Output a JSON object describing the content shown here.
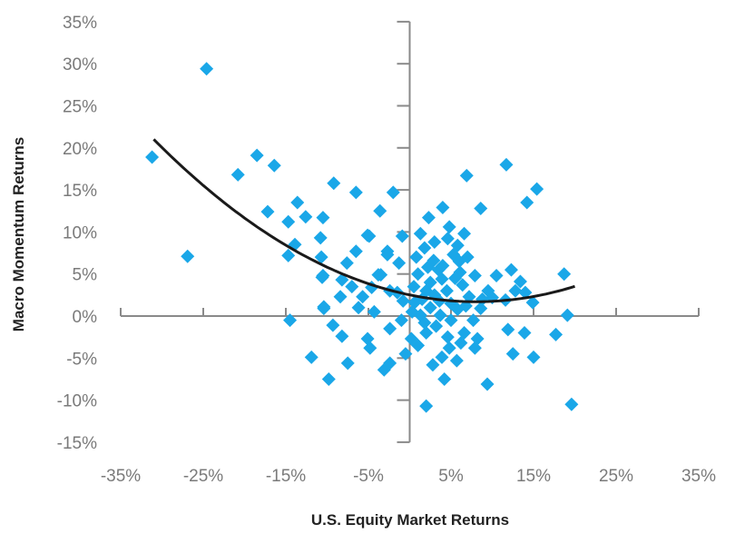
{
  "chart_data": {
    "type": "scatter",
    "title": "",
    "xlabel": "U.S. Equity Market Returns",
    "ylabel": "Macro Momentum Returns",
    "xlim": [
      -35,
      35
    ],
    "ylim": [
      -15,
      35
    ],
    "x_ticks": [
      -35,
      -25,
      -15,
      -5,
      5,
      15,
      25,
      35
    ],
    "x_tick_labels": [
      "-35%",
      "-25%",
      "-15%",
      "-5%",
      "5%",
      "15%",
      "25%",
      "35%"
    ],
    "y_ticks": [
      35,
      30,
      25,
      20,
      15,
      10,
      5,
      0,
      -5,
      -10,
      -15
    ],
    "y_tick_labels": [
      "35%",
      "30%",
      "25%",
      "20%",
      "15%",
      "10%",
      "5%",
      "0%",
      "-5%",
      "-10%",
      "-15%"
    ],
    "grid": false,
    "legend": "none",
    "marker": "diamond",
    "colors": {
      "points": "#1AA7E8",
      "fit_line": "#1a1a1a",
      "axis": "#8a8a8a"
    },
    "points": [
      [
        -24.6,
        29.4
      ],
      [
        -31.2,
        18.9
      ],
      [
        -26.9,
        7.1
      ],
      [
        -20.8,
        16.8
      ],
      [
        -18.5,
        19.1
      ],
      [
        -16.4,
        17.9
      ],
      [
        -17.2,
        12.4
      ],
      [
        -14.7,
        11.2
      ],
      [
        -13.6,
        13.5
      ],
      [
        -12.6,
        11.8
      ],
      [
        -10.5,
        11.7
      ],
      [
        -10.8,
        9.3
      ],
      [
        -13.9,
        8.5
      ],
      [
        -14.7,
        7.2
      ],
      [
        -9.2,
        15.8
      ],
      [
        -6.5,
        14.7
      ],
      [
        -2.0,
        14.7
      ],
      [
        -3.6,
        12.5
      ],
      [
        -5.1,
        9.6
      ],
      [
        -6.5,
        7.7
      ],
      [
        -10.7,
        7.0
      ],
      [
        -10.5,
        4.8
      ],
      [
        -7.6,
        6.3
      ],
      [
        -8.2,
        4.3
      ],
      [
        -10.4,
        1.1
      ],
      [
        -8.4,
        2.3
      ],
      [
        -3.8,
        4.9
      ],
      [
        -2.7,
        7.7
      ],
      [
        -14.5,
        -0.5
      ],
      [
        11.7,
        18.0
      ],
      [
        6.9,
        16.7
      ],
      [
        15.4,
        15.1
      ],
      [
        14.2,
        13.5
      ],
      [
        8.6,
        12.8
      ],
      [
        4.0,
        12.9
      ],
      [
        2.3,
        11.7
      ],
      [
        4.8,
        10.6
      ],
      [
        6.6,
        9.8
      ],
      [
        4.6,
        9.2
      ],
      [
        1.3,
        9.8
      ],
      [
        -0.9,
        9.5
      ],
      [
        -4.9,
        9.5
      ],
      [
        -2.7,
        7.3
      ],
      [
        -1.3,
        6.3
      ],
      [
        1.8,
        8.1
      ],
      [
        2.9,
        6.6
      ],
      [
        5.3,
        7.3
      ],
      [
        6.1,
        5.2
      ],
      [
        7.9,
        4.8
      ],
      [
        10.5,
        4.8
      ],
      [
        12.3,
        5.5
      ],
      [
        13.4,
        4.1
      ],
      [
        18.7,
        5.0
      ],
      [
        14.9,
        1.6
      ],
      [
        11.6,
        1.9
      ],
      [
        8.6,
        0.9
      ],
      [
        19.1,
        0.1
      ],
      [
        11.9,
        -1.6
      ],
      [
        13.9,
        -2.0
      ],
      [
        17.7,
        -2.2
      ],
      [
        12.5,
        -4.5
      ],
      [
        15.0,
        -4.9
      ],
      [
        19.6,
        -10.5
      ],
      [
        2.0,
        -10.7
      ],
      [
        9.4,
        -8.1
      ],
      [
        4.2,
        -7.5
      ],
      [
        5.7,
        -5.3
      ],
      [
        3.9,
        -4.9
      ],
      [
        7.9,
        -3.8
      ],
      [
        6.6,
        -2.0
      ],
      [
        2.0,
        -2.0
      ],
      [
        0.2,
        -2.7
      ],
      [
        -0.5,
        -4.5
      ],
      [
        -2.4,
        -5.6
      ],
      [
        -3.1,
        -6.4
      ],
      [
        -7.5,
        -5.6
      ],
      [
        -9.8,
        -7.5
      ],
      [
        -11.9,
        -4.9
      ],
      [
        -8.2,
        -2.4
      ],
      [
        -9.3,
        -1.1
      ],
      [
        -5.1,
        -2.7
      ],
      [
        -4.8,
        -3.8
      ],
      [
        -2.4,
        -1.5
      ],
      [
        -10.4,
        0.9
      ],
      [
        -10.6,
        4.6
      ],
      [
        -4.6,
        3.4
      ],
      [
        -5.7,
        2.3
      ],
      [
        -4.3,
        0.5
      ],
      [
        -2.4,
        3.0
      ],
      [
        -3.5,
        4.9
      ],
      [
        7.7,
        -0.5
      ],
      [
        8.2,
        -2.7
      ],
      [
        5.0,
        -0.5
      ],
      [
        3.7,
        0.1
      ],
      [
        1.3,
        0.1
      ],
      [
        0.6,
        1.6
      ],
      [
        2.0,
        3.0
      ],
      [
        3.9,
        4.4
      ],
      [
        6.4,
        3.7
      ],
      [
        7.2,
        2.3
      ],
      [
        0.5,
        3.5
      ],
      [
        1.0,
        5.0
      ],
      [
        1.5,
        2.0
      ],
      [
        2.5,
        1.0
      ],
      [
        3.0,
        2.5
      ],
      [
        3.5,
        5.5
      ],
      [
        4.5,
        3.0
      ],
      [
        5.0,
        1.5
      ],
      [
        5.5,
        4.5
      ],
      [
        6.0,
        6.5
      ],
      [
        4.0,
        6.0
      ],
      [
        2.5,
        4.0
      ],
      [
        1.8,
        -0.8
      ],
      [
        3.2,
        -1.2
      ],
      [
        4.6,
        -2.5
      ],
      [
        5.8,
        0.8
      ],
      [
        6.8,
        1.2
      ],
      [
        0.3,
        0.5
      ],
      [
        -0.8,
        1.8
      ],
      [
        -1.5,
        2.8
      ],
      [
        9.5,
        3.0
      ],
      [
        10.0,
        2.2
      ],
      [
        12.8,
        3.0
      ],
      [
        14.0,
        2.8
      ],
      [
        3.0,
        8.8
      ],
      [
        5.8,
        8.4
      ],
      [
        7.0,
        7.0
      ],
      [
        1.0,
        -3.5
      ],
      [
        4.8,
        -3.8
      ],
      [
        6.2,
        -3.2
      ],
      [
        -6.2,
        1.0
      ],
      [
        -7.0,
        3.5
      ],
      [
        -1.0,
        -0.5
      ],
      [
        2.8,
        -5.8
      ],
      [
        0.8,
        7.0
      ],
      [
        8.8,
        2.0
      ],
      [
        3.6,
        1.8
      ],
      [
        2.2,
        5.8
      ]
    ],
    "fit_curve": {
      "type": "quadratic",
      "x_range": [
        -31,
        20
      ],
      "vertex": [
        8,
        1.7
      ],
      "a": 0.0127
    }
  }
}
